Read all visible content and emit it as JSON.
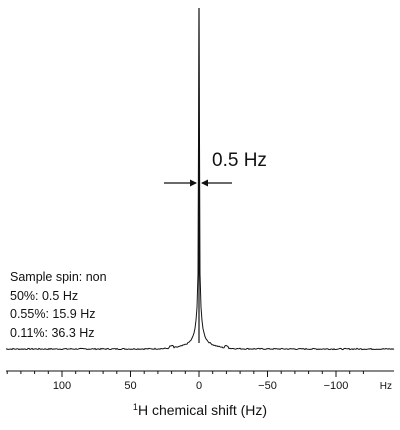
{
  "chart_data": {
    "type": "line",
    "xlabel_prefix": "1",
    "xlabel": "H chemical shift (Hz)",
    "x_unit_label": "Hz",
    "x_ticks": [
      100,
      50,
      0,
      -50,
      -100
    ],
    "x_tick_labels": [
      "100",
      "50",
      "0",
      "−50",
      "−100"
    ],
    "xlim": [
      145,
      -145
    ],
    "x_reversed": true,
    "series": [
      {
        "peak_center": 0,
        "linewidths_hz": {
          "50%": 0.5,
          "0.55%": 15.9,
          "0.11%": 36.3
        }
      }
    ],
    "annotations": {
      "linewidth_label": "0.5 Hz",
      "legend_lines": [
        "Sample spin: non",
        "50%: 0.5 Hz",
        "0.55%: 15.9 Hz",
        "0.11%: 36.3 Hz"
      ]
    }
  }
}
